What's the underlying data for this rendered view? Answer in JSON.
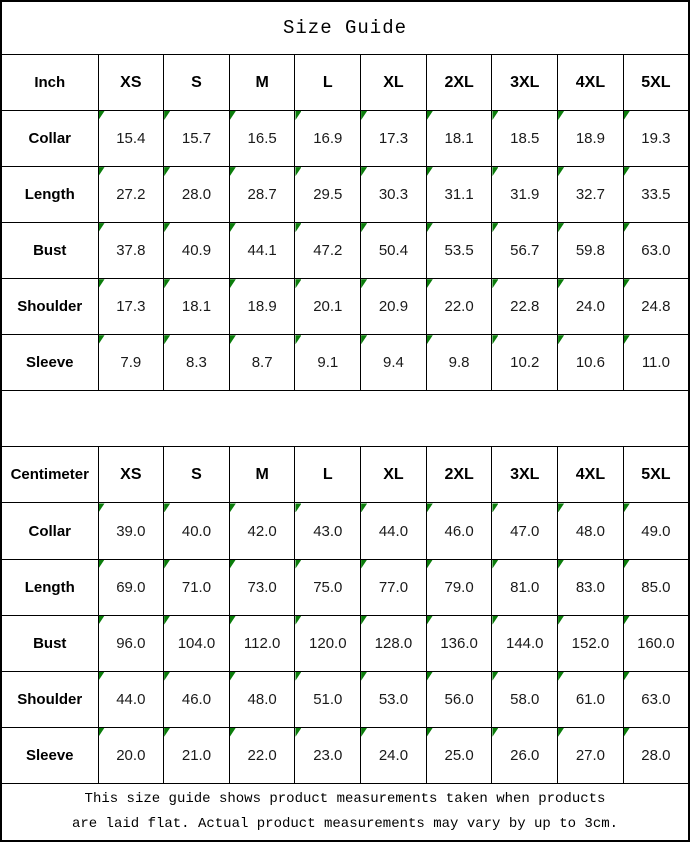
{
  "title": "Size Guide",
  "colors": {
    "border": "#000000",
    "corner_marker_green": "#0b7d0b",
    "text": "#1a1a1a",
    "background": "#ffffff"
  },
  "sections": [
    {
      "unit_label": "Inch",
      "sizes": [
        "XS",
        "S",
        "M",
        "L",
        "XL",
        "2XL",
        "3XL",
        "4XL",
        "5XL"
      ],
      "rows": [
        {
          "label": "Collar",
          "values": [
            "15.4",
            "15.7",
            "16.5",
            "16.9",
            "17.3",
            "18.1",
            "18.5",
            "18.9",
            "19.3"
          ]
        },
        {
          "label": "Length",
          "values": [
            "27.2",
            "28.0",
            "28.7",
            "29.5",
            "30.3",
            "31.1",
            "31.9",
            "32.7",
            "33.5"
          ]
        },
        {
          "label": "Bust",
          "values": [
            "37.8",
            "40.9",
            "44.1",
            "47.2",
            "50.4",
            "53.5",
            "56.7",
            "59.8",
            "63.0"
          ]
        },
        {
          "label": "Shoulder",
          "values": [
            "17.3",
            "18.1",
            "18.9",
            "20.1",
            "20.9",
            "22.0",
            "22.8",
            "24.0",
            "24.8"
          ]
        },
        {
          "label": "Sleeve",
          "values": [
            "7.9",
            "8.3",
            "8.7",
            "9.1",
            "9.4",
            "9.8",
            "10.2",
            "10.6",
            "11.0"
          ]
        }
      ]
    },
    {
      "unit_label": "Centimeter",
      "sizes": [
        "XS",
        "S",
        "M",
        "L",
        "XL",
        "2XL",
        "3XL",
        "4XL",
        "5XL"
      ],
      "rows": [
        {
          "label": "Collar",
          "values": [
            "39.0",
            "40.0",
            "42.0",
            "43.0",
            "44.0",
            "46.0",
            "47.0",
            "48.0",
            "49.0"
          ]
        },
        {
          "label": "Length",
          "values": [
            "69.0",
            "71.0",
            "73.0",
            "75.0",
            "77.0",
            "79.0",
            "81.0",
            "83.0",
            "85.0"
          ]
        },
        {
          "label": "Bust",
          "values": [
            "96.0",
            "104.0",
            "112.0",
            "120.0",
            "128.0",
            "136.0",
            "144.0",
            "152.0",
            "160.0"
          ]
        },
        {
          "label": "Shoulder",
          "values": [
            "44.0",
            "46.0",
            "48.0",
            "51.0",
            "53.0",
            "56.0",
            "58.0",
            "61.0",
            "63.0"
          ]
        },
        {
          "label": "Sleeve",
          "values": [
            "20.0",
            "21.0",
            "22.0",
            "23.0",
            "24.0",
            "25.0",
            "26.0",
            "27.0",
            "28.0"
          ]
        }
      ]
    }
  ],
  "footer": {
    "line1": "This size guide shows product measurements taken when products",
    "line2": "are laid flat. Actual product measurements may vary by up to 3cm."
  }
}
